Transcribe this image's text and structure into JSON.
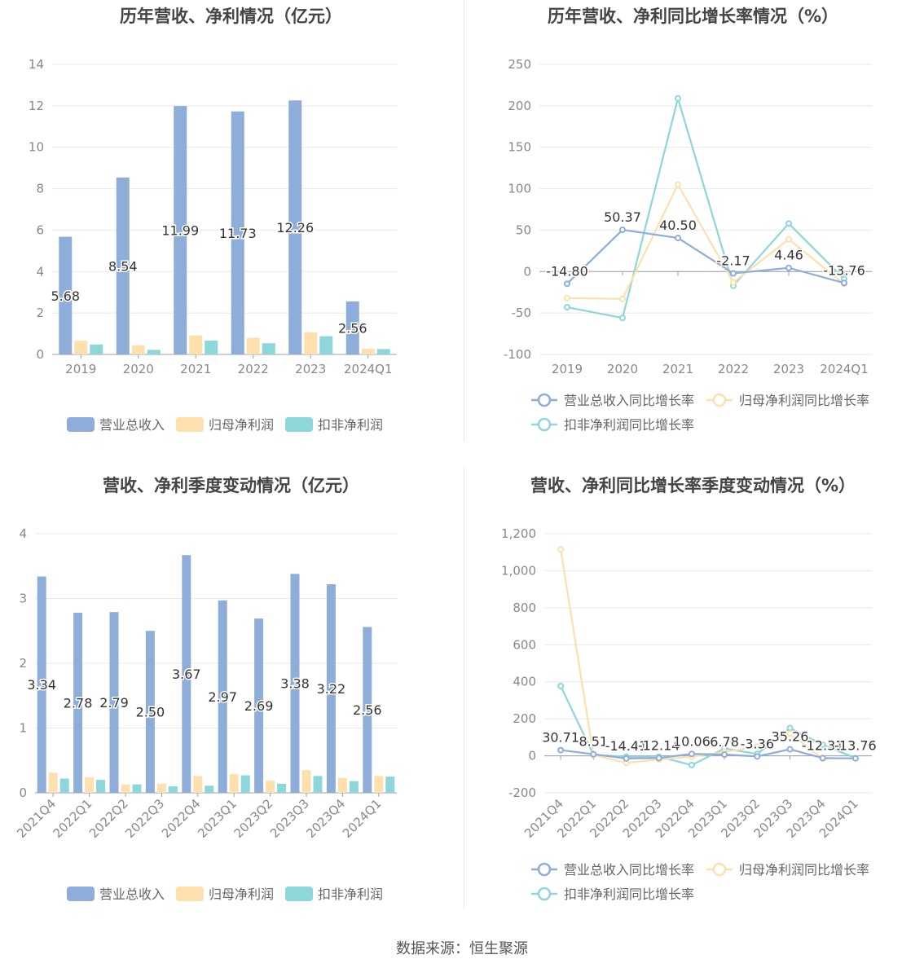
{
  "source_text": "数据来源：恒生聚源",
  "colors": {
    "revenue": "#8eadd9",
    "net_profit": "#fde0ae",
    "deducted_profit": "#8dd6da",
    "grid": "#e8e8ee",
    "axis_text": "#888888",
    "label_text": "#333333",
    "title": "#444444"
  },
  "chart_data": [
    {
      "type": "bar",
      "title": "历年营收、净利情况（亿元）",
      "categories": [
        "2019",
        "2020",
        "2021",
        "2022",
        "2023",
        "2024Q1"
      ],
      "ylim": [
        0,
        14
      ],
      "yticks": [
        0,
        2,
        4,
        6,
        8,
        10,
        12,
        14
      ],
      "ytick_labels": [
        "0",
        "2",
        "4",
        "6",
        "8",
        "10",
        "12",
        "14"
      ],
      "grid": true,
      "legend_position": "bottom",
      "series": [
        {
          "name": "营业总收入",
          "color_key": "revenue",
          "values": [
            5.68,
            8.54,
            11.99,
            11.73,
            12.26,
            2.56
          ],
          "labels": [
            "5.68",
            "8.54",
            "11.99",
            "11.73",
            "12.26",
            "2.56"
          ]
        },
        {
          "name": "归母净利润",
          "color_key": "net_profit",
          "values": [
            0.66,
            0.44,
            0.92,
            0.8,
            1.07,
            0.27
          ]
        },
        {
          "name": "扣非净利润",
          "color_key": "deducted_profit",
          "values": [
            0.48,
            0.22,
            0.67,
            0.54,
            0.88,
            0.26
          ]
        }
      ]
    },
    {
      "type": "line",
      "title": "历年营收、净利同比增长率情况（%）",
      "categories": [
        "2019",
        "2020",
        "2021",
        "2022",
        "2023",
        "2024Q1"
      ],
      "ylim": [
        -100,
        250
      ],
      "yticks": [
        -100,
        -50,
        0,
        50,
        100,
        150,
        200,
        250
      ],
      "ytick_labels": [
        "-100",
        "-50",
        "0",
        "50",
        "100",
        "150",
        "200",
        "250"
      ],
      "grid": true,
      "legend_position": "bottom",
      "series": [
        {
          "name": "营业总收入同比增长率",
          "color_key": "revenue",
          "values": [
            -14.8,
            50.37,
            40.5,
            -2.17,
            4.46,
            -13.76
          ],
          "labels": [
            "-14.80",
            "50.37",
            "40.50",
            "-2.17",
            "4.46",
            "-13.76"
          ]
        },
        {
          "name": "归母净利润同比增长率",
          "color_key": "net_profit",
          "values": [
            -32,
            -33,
            105,
            -13,
            39,
            -15
          ]
        },
        {
          "name": "扣非净利润同比增长率",
          "color_key": "deducted_profit",
          "values": [
            -43,
            -56,
            209,
            -17,
            58,
            -9
          ]
        }
      ]
    },
    {
      "type": "bar",
      "title": "营收、净利季度变动情况（亿元）",
      "categories": [
        "2021Q4",
        "2022Q1",
        "2022Q2",
        "2022Q3",
        "2022Q4",
        "2023Q1",
        "2023Q2",
        "2023Q3",
        "2023Q4",
        "2024Q1"
      ],
      "ylim": [
        0,
        4
      ],
      "yticks": [
        0,
        1,
        2,
        3,
        4
      ],
      "ytick_labels": [
        "0",
        "1",
        "2",
        "3",
        "4"
      ],
      "grid": true,
      "legend_position": "bottom",
      "series": [
        {
          "name": "营业总收入",
          "color_key": "revenue",
          "values": [
            3.34,
            2.78,
            2.79,
            2.5,
            3.67,
            2.97,
            2.69,
            3.38,
            3.22,
            2.56
          ],
          "labels": [
            "3.34",
            "2.78",
            "2.79",
            "2.50",
            "3.67",
            "2.97",
            "2.69",
            "3.38",
            "3.22",
            "2.56"
          ]
        },
        {
          "name": "归母净利润",
          "color_key": "net_profit",
          "values": [
            0.31,
            0.24,
            0.13,
            0.14,
            0.26,
            0.29,
            0.19,
            0.35,
            0.23,
            0.26
          ]
        },
        {
          "name": "扣非净利润",
          "color_key": "deducted_profit",
          "values": [
            0.22,
            0.2,
            0.13,
            0.1,
            0.11,
            0.27,
            0.14,
            0.26,
            0.18,
            0.25
          ]
        }
      ]
    },
    {
      "type": "line",
      "title": "营收、净利同比增长率季度变动情况（%）",
      "categories": [
        "2021Q4",
        "2022Q1",
        "2022Q2",
        "2022Q3",
        "2022Q4",
        "2023Q1",
        "2023Q2",
        "2023Q3",
        "2023Q4",
        "2024Q1"
      ],
      "ylim": [
        -200,
        1200
      ],
      "yticks": [
        -200,
        0,
        200,
        400,
        600,
        800,
        1000,
        1200
      ],
      "ytick_labels": [
        "-200",
        "0",
        "200",
        "400",
        "600",
        "800",
        "1,000",
        "1,200"
      ],
      "grid": true,
      "legend_position": "bottom",
      "series": [
        {
          "name": "营业总收入同比增长率",
          "color_key": "revenue",
          "values": [
            30.71,
            8.51,
            -14.41,
            -12.14,
            10.06,
            6.78,
            -3.36,
            35.26,
            -12.31,
            -13.76
          ],
          "labels": [
            "30.71",
            "8.51",
            "-14.41",
            "-12.14",
            "10.06",
            "6.78",
            "-3.36",
            "35.26",
            "-12.31",
            "-13.76"
          ]
        },
        {
          "name": "归母净利润同比增长率",
          "color_key": "net_profit",
          "values": [
            1115,
            5,
            -38,
            -20,
            -5,
            20,
            50,
            120,
            -15,
            -12
          ]
        },
        {
          "name": "扣非净利润同比增长率",
          "color_key": "deducted_profit",
          "values": [
            377,
            5,
            -5,
            -5,
            -50,
            40,
            10,
            150,
            60,
            -12
          ]
        }
      ]
    }
  ]
}
